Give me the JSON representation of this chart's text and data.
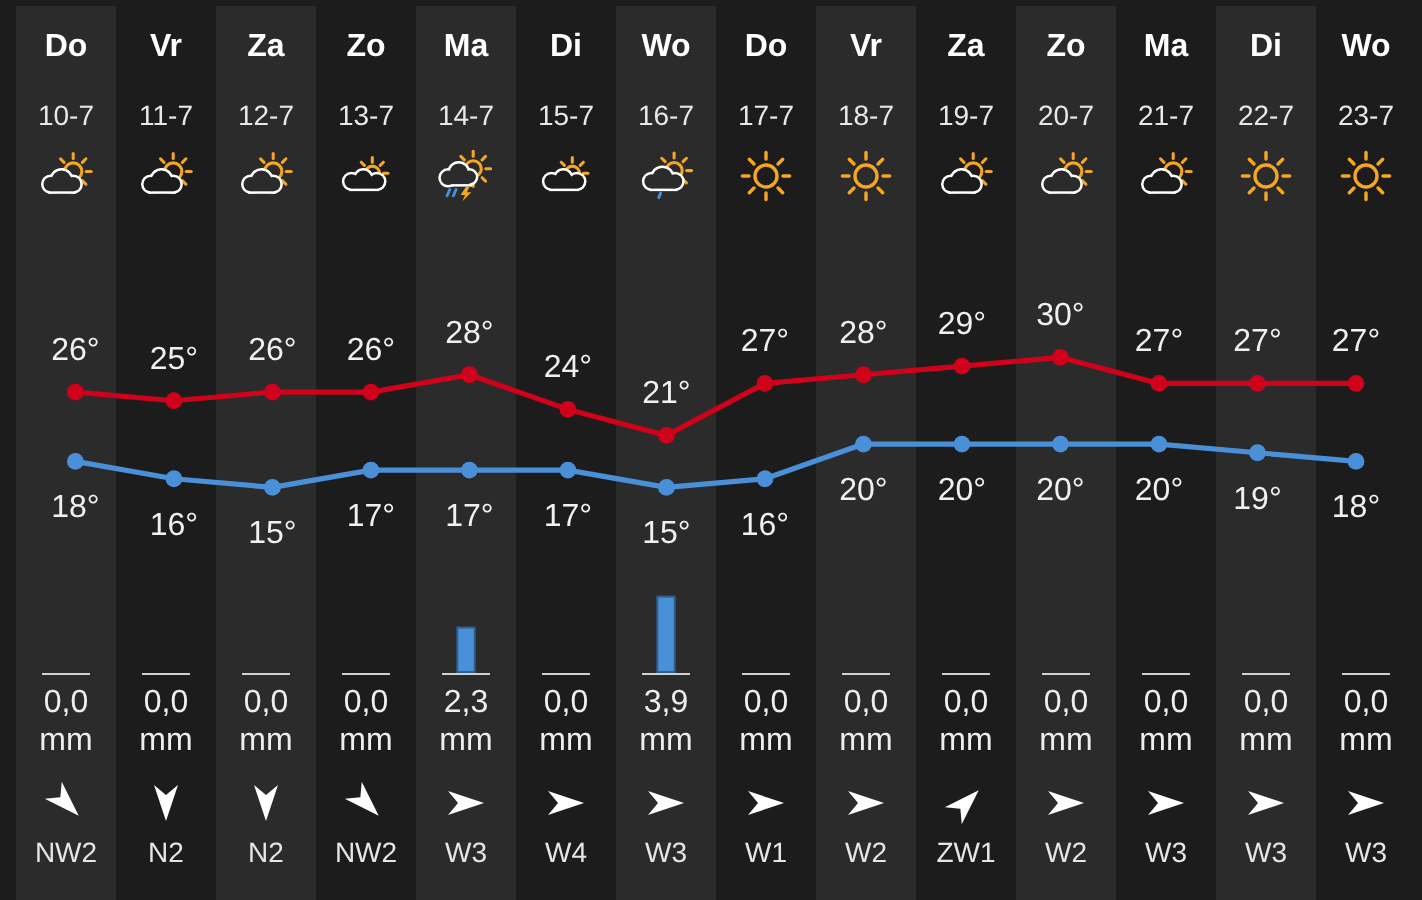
{
  "chart_data": [
    {
      "type": "line",
      "categories": [
        "Do 10-7",
        "Vr 11-7",
        "Za 12-7",
        "Zo 13-7",
        "Ma 14-7",
        "Di 15-7",
        "Wo 16-7",
        "Do 17-7",
        "Vr 18-7",
        "Za 19-7",
        "Zo 20-7",
        "Ma 21-7",
        "Di 22-7",
        "Wo 23-7"
      ],
      "series": [
        {
          "color": "#d0021b",
          "values": [
            26,
            25,
            26,
            26,
            28,
            24,
            21,
            27,
            28,
            29,
            30,
            27,
            27,
            27
          ],
          "value_labels": [
            "26°",
            "25°",
            "26°",
            "26°",
            "28°",
            "24°",
            "21°",
            "27°",
            "28°",
            "29°",
            "30°",
            "27°",
            "27°",
            "27°"
          ]
        },
        {
          "color": "#4a90d9",
          "values": [
            18,
            16,
            15,
            17,
            17,
            17,
            15,
            16,
            20,
            20,
            20,
            20,
            19,
            18
          ],
          "value_labels": [
            "18°",
            "16°",
            "15°",
            "17°",
            "17°",
            "17°",
            "15°",
            "16°",
            "20°",
            "20°",
            "20°",
            "20°",
            "19°",
            "18°"
          ]
        }
      ],
      "marker": "circle"
    },
    {
      "type": "bar",
      "categories": [
        null,
        null,
        null,
        null,
        null,
        null,
        null,
        null,
        null,
        null,
        null,
        null,
        null,
        null
      ],
      "values": [
        0,
        0,
        0,
        0,
        2.3,
        0,
        3.9,
        0,
        0,
        0,
        0,
        0,
        0,
        0
      ],
      "color": "#4a90d9",
      "value_labels": [
        "0,0 mm",
        "0,0 mm",
        "0,0 mm",
        "0,0 mm",
        "2,3 mm",
        "0,0 mm",
        "3,9 mm",
        "0,0 mm",
        "0,0 mm",
        "0,0 mm",
        "0,0 mm",
        "0,0 mm",
        "0,0 mm",
        "0,0 mm"
      ]
    },
    {
      "type": "other",
      "annotations": [
        "NW2",
        "N2",
        "N2",
        "NW2",
        "W3",
        "W4",
        "W3",
        "W1",
        "W2",
        "ZW1",
        "W2",
        "W3",
        "W3",
        "W3"
      ]
    }
  ]
}
